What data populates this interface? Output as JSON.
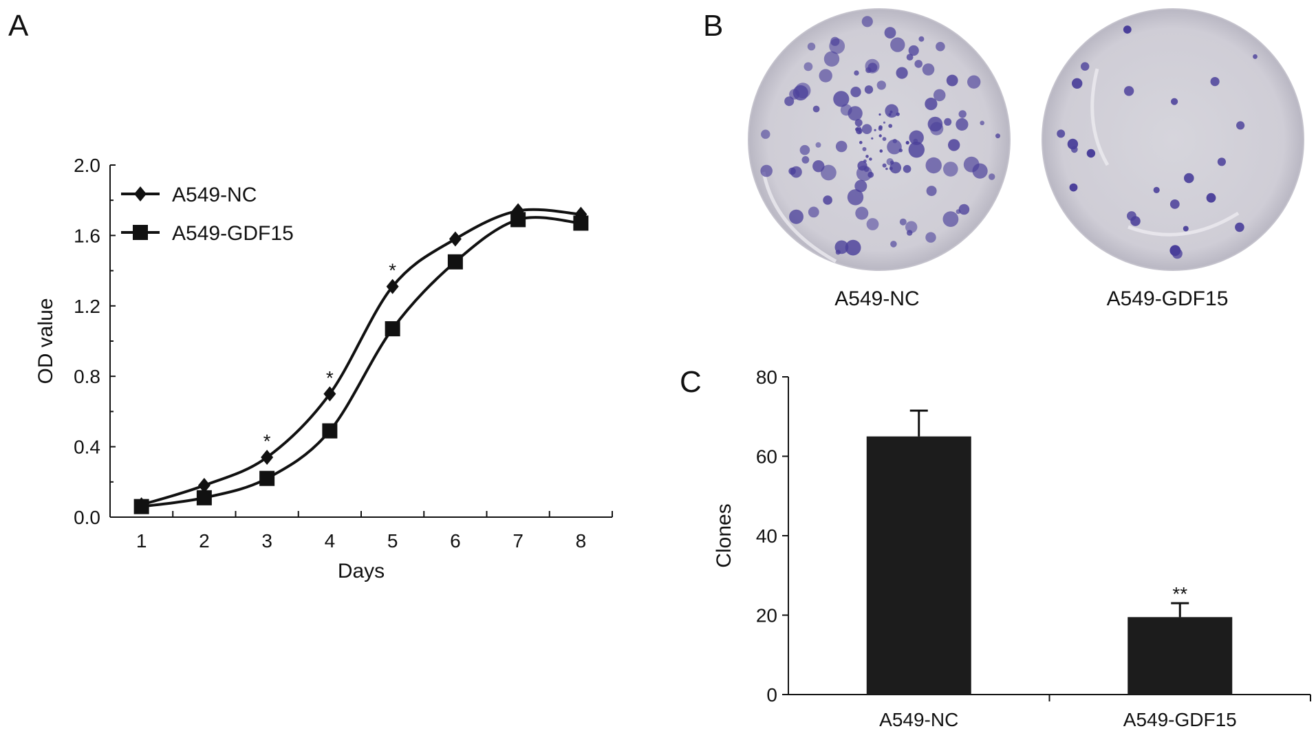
{
  "panels": {
    "a": {
      "letter": "A"
    },
    "b": {
      "letter": "B",
      "dish_labels": [
        "A549-NC",
        "A549-GDF15"
      ]
    },
    "c": {
      "letter": "C"
    }
  },
  "chart_data": [
    {
      "panel": "A",
      "type": "line",
      "xlabel": "Days",
      "ylabel": "OD value",
      "x": [
        1,
        2,
        3,
        4,
        5,
        6,
        7,
        8
      ],
      "ylim": [
        0.0,
        2.0
      ],
      "yticks": [
        "0.0",
        "0.4",
        "0.8",
        "1.2",
        "1.6",
        "2.0"
      ],
      "xticks": [
        "1",
        "2",
        "3",
        "4",
        "5",
        "6",
        "7",
        "8"
      ],
      "legend_position": "top-left",
      "grid": false,
      "series": [
        {
          "name": "A549-NC",
          "marker": "diamond",
          "values": [
            0.07,
            0.18,
            0.34,
            0.7,
            1.31,
            1.58,
            1.74,
            1.72
          ]
        },
        {
          "name": "A549-GDF15",
          "marker": "square",
          "values": [
            0.06,
            0.11,
            0.22,
            0.49,
            1.07,
            1.45,
            1.69,
            1.67
          ]
        }
      ],
      "annotations": [
        {
          "x": 3,
          "text": "*"
        },
        {
          "x": 4,
          "text": "*"
        },
        {
          "x": 5,
          "text": "*"
        }
      ]
    },
    {
      "panel": "C",
      "type": "bar",
      "ylabel": "Clones",
      "xlabel": "",
      "categories": [
        "A549-NC",
        "A549-GDF15"
      ],
      "values": [
        65,
        19.5
      ],
      "errors": [
        6.5,
        3.5
      ],
      "ylim": [
        0,
        80
      ],
      "yticks": [
        "0",
        "20",
        "40",
        "60",
        "80"
      ],
      "bar_color": "#1c1c1c",
      "grid": false,
      "annotations": [
        {
          "category": "A549-GDF15",
          "text": "**"
        }
      ]
    }
  ],
  "colors": {
    "ink": "#111111",
    "bar": "#1c1c1c",
    "stain": "#4a3f9a",
    "dish": "#d2d0d8"
  }
}
